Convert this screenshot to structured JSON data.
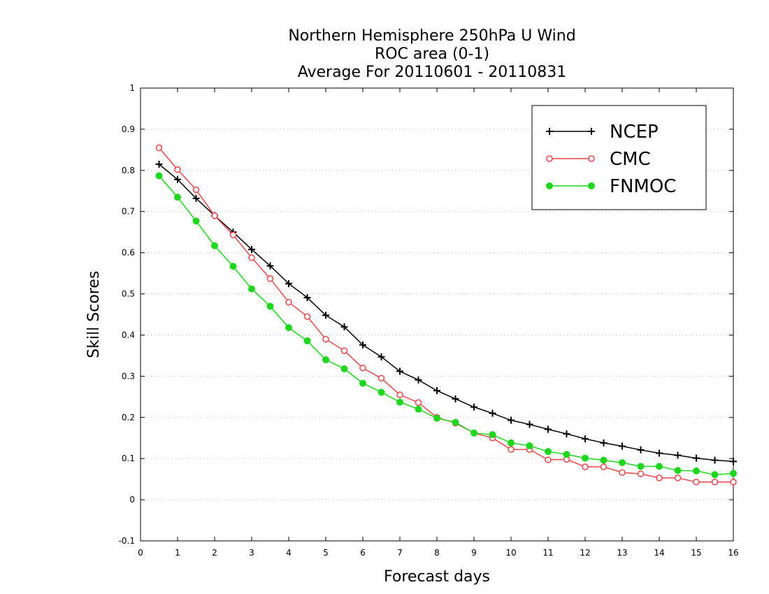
{
  "chart_data": {
    "type": "line",
    "title": [
      "Northern Hemisphere 250hPa U Wind",
      "ROC area (0-1)",
      "Average For 20110601 - 20110831"
    ],
    "xlabel": "Forecast days",
    "ylabel": "Skill Scores",
    "xlim": [
      0,
      16
    ],
    "ylim": [
      -0.1,
      1
    ],
    "xticks": [
      "0",
      "1",
      "2",
      "3",
      "4",
      "5",
      "6",
      "7",
      "8",
      "9",
      "10",
      "11",
      "12",
      "13",
      "14",
      "15",
      "16"
    ],
    "yticks": [
      "-0.1",
      "0",
      "0.1",
      "0.2",
      "0.3",
      "0.4",
      "0.5",
      "0.6",
      "0.7",
      "0.8",
      "0.9",
      "1"
    ],
    "grid": true,
    "legend": "top-right",
    "x": [
      0.5,
      1,
      1.5,
      2,
      2.5,
      3,
      3.5,
      4,
      4.5,
      5,
      5.5,
      6,
      6.5,
      7,
      7.5,
      8,
      8.5,
      9,
      9.5,
      10,
      10.5,
      11,
      11.5,
      12,
      12.5,
      13,
      13.5,
      14,
      14.5,
      15,
      15.5,
      16
    ],
    "series": [
      {
        "name": "NCEP",
        "color": "#000000",
        "marker": "plus",
        "values": [
          0.815,
          0.778,
          0.732,
          0.69,
          0.65,
          0.608,
          0.568,
          0.525,
          0.491,
          0.448,
          0.42,
          0.376,
          0.347,
          0.312,
          0.291,
          0.265,
          0.245,
          0.225,
          0.21,
          0.193,
          0.183,
          0.171,
          0.16,
          0.148,
          0.138,
          0.13,
          0.121,
          0.113,
          0.108,
          0.101,
          0.096,
          0.093
        ]
      },
      {
        "name": "CMC",
        "color": "#e8474b",
        "marker": "open-circle",
        "values": [
          0.855,
          0.802,
          0.753,
          0.69,
          0.643,
          0.588,
          0.537,
          0.48,
          0.445,
          0.39,
          0.362,
          0.32,
          0.295,
          0.255,
          0.236,
          0.2,
          0.186,
          0.162,
          0.15,
          0.122,
          0.122,
          0.097,
          0.098,
          0.08,
          0.08,
          0.066,
          0.063,
          0.053,
          0.053,
          0.043,
          0.043,
          0.043
        ]
      },
      {
        "name": "FNMOC",
        "color": "#1fd61f",
        "marker": "filled-circle",
        "values": [
          0.787,
          0.735,
          0.677,
          0.617,
          0.567,
          0.512,
          0.47,
          0.418,
          0.386,
          0.34,
          0.318,
          0.283,
          0.261,
          0.237,
          0.22,
          0.198,
          0.188,
          0.162,
          0.158,
          0.138,
          0.131,
          0.117,
          0.11,
          0.101,
          0.096,
          0.09,
          0.081,
          0.081,
          0.071,
          0.07,
          0.061,
          0.064
        ]
      }
    ]
  }
}
